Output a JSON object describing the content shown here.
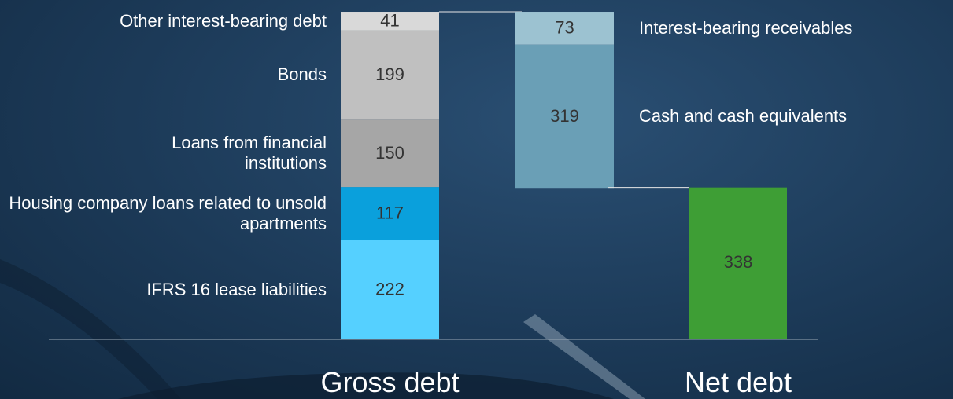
{
  "chart_data": {
    "type": "waterfall",
    "categories": [
      "Gross debt",
      "Net debt"
    ],
    "gross": [
      {
        "name": "IFRS 16 lease liabilities",
        "color": "#55d0ff",
        "value": 222
      },
      {
        "name": "Housing company loans related to unsold apartments",
        "color": "#0aa0dc",
        "value": 117
      },
      {
        "name": "Loans from financial institutions",
        "color": "#a6a6a6",
        "value": 150
      },
      {
        "name": "Bonds",
        "color": "#c0c0c0",
        "value": 199
      },
      {
        "name": "Other interest-bearing debt",
        "color": "#d9d9d9",
        "value": 41
      }
    ],
    "deductions": [
      {
        "name": "Interest-bearing receivables",
        "color": "#9cc2d1",
        "value": 73
      },
      {
        "name": "Cash and cash equivalents",
        "color": "#6a9fb6",
        "value": 319
      }
    ],
    "net": {
      "color": "#3e9e35",
      "value": 338
    }
  }
}
